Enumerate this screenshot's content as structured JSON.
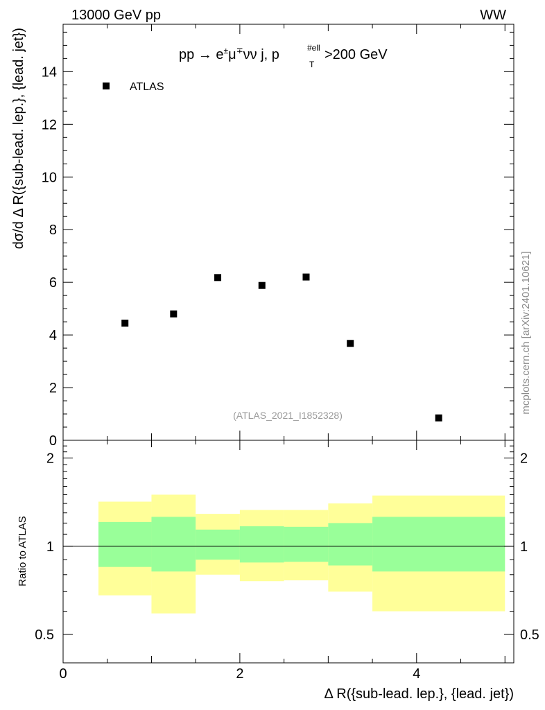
{
  "header": {
    "energy_label": "13000 GeV pp",
    "process_label": "WW",
    "selection_pre": "pp → e",
    "selection_mid": "μ",
    "selection_post": "νν j, p",
    "selection_sup1": "±",
    "selection_sup2": "∓",
    "selection_sup3": "#ell",
    "selection_sub": "T",
    "selection_tail": ">200 GeV",
    "watermark": "mcplots.cern.ch [arXiv:2401.10621]",
    "analysis_id": "(ATLAS_2021_I1852328)"
  },
  "chart_data": [
    {
      "type": "scatter",
      "title": "pp → e±μ∓νν j, pT#ell>200 GeV",
      "ylabel": "dσ/d Δ R({sub-lead. lep.}, {lead. jet})",
      "xlim": [
        0,
        5.1
      ],
      "ylim": [
        0,
        15.8
      ],
      "yticks": [
        0,
        2,
        4,
        6,
        8,
        10,
        12,
        14
      ],
      "ytick_labels": [
        "0",
        "2",
        "4",
        "6",
        "8",
        "10",
        "12",
        "14"
      ],
      "legend": {
        "position": "top-left",
        "entries": [
          "ATLAS"
        ]
      },
      "series": [
        {
          "name": "ATLAS",
          "x": [
            0.7,
            1.25,
            1.75,
            2.25,
            2.75,
            3.25,
            4.25
          ],
          "y": [
            4.45,
            4.8,
            6.18,
            5.88,
            6.2,
            3.68,
            0.85
          ]
        }
      ]
    },
    {
      "type": "area",
      "ylabel": "Ratio to ATLAS",
      "xlabel": "Δ R({sub-lead. lep.}, {lead. jet})",
      "xlim": [
        0,
        5.1
      ],
      "ylim": [
        0.4,
        2.3
      ],
      "yscale": "log",
      "xticks": [
        0,
        2,
        4
      ],
      "xtick_labels": [
        "0",
        "2",
        "4"
      ],
      "yticks": [
        0.5,
        1,
        2
      ],
      "ytick_labels": [
        "0.5",
        "1",
        "2"
      ],
      "reference_line": 1,
      "bins": [
        {
          "xlo": 0.4,
          "xhi": 1.0,
          "yellow": [
            0.68,
            1.42
          ],
          "green": [
            0.85,
            1.21
          ]
        },
        {
          "xlo": 1.0,
          "xhi": 1.5,
          "yellow": [
            0.59,
            1.5
          ],
          "green": [
            0.82,
            1.26
          ]
        },
        {
          "xlo": 1.5,
          "xhi": 2.0,
          "yellow": [
            0.8,
            1.29
          ],
          "green": [
            0.9,
            1.14
          ]
        },
        {
          "xlo": 2.0,
          "xhi": 2.5,
          "yellow": [
            0.76,
            1.33
          ],
          "green": [
            0.88,
            1.17
          ]
        },
        {
          "xlo": 2.5,
          "xhi": 3.0,
          "yellow": [
            0.765,
            1.33
          ],
          "green": [
            0.885,
            1.165
          ]
        },
        {
          "xlo": 3.0,
          "xhi": 3.5,
          "yellow": [
            0.7,
            1.4
          ],
          "green": [
            0.86,
            1.2
          ]
        },
        {
          "xlo": 3.5,
          "xhi": 5.0,
          "yellow": [
            0.6,
            1.49
          ],
          "green": [
            0.82,
            1.26
          ]
        }
      ]
    }
  ]
}
